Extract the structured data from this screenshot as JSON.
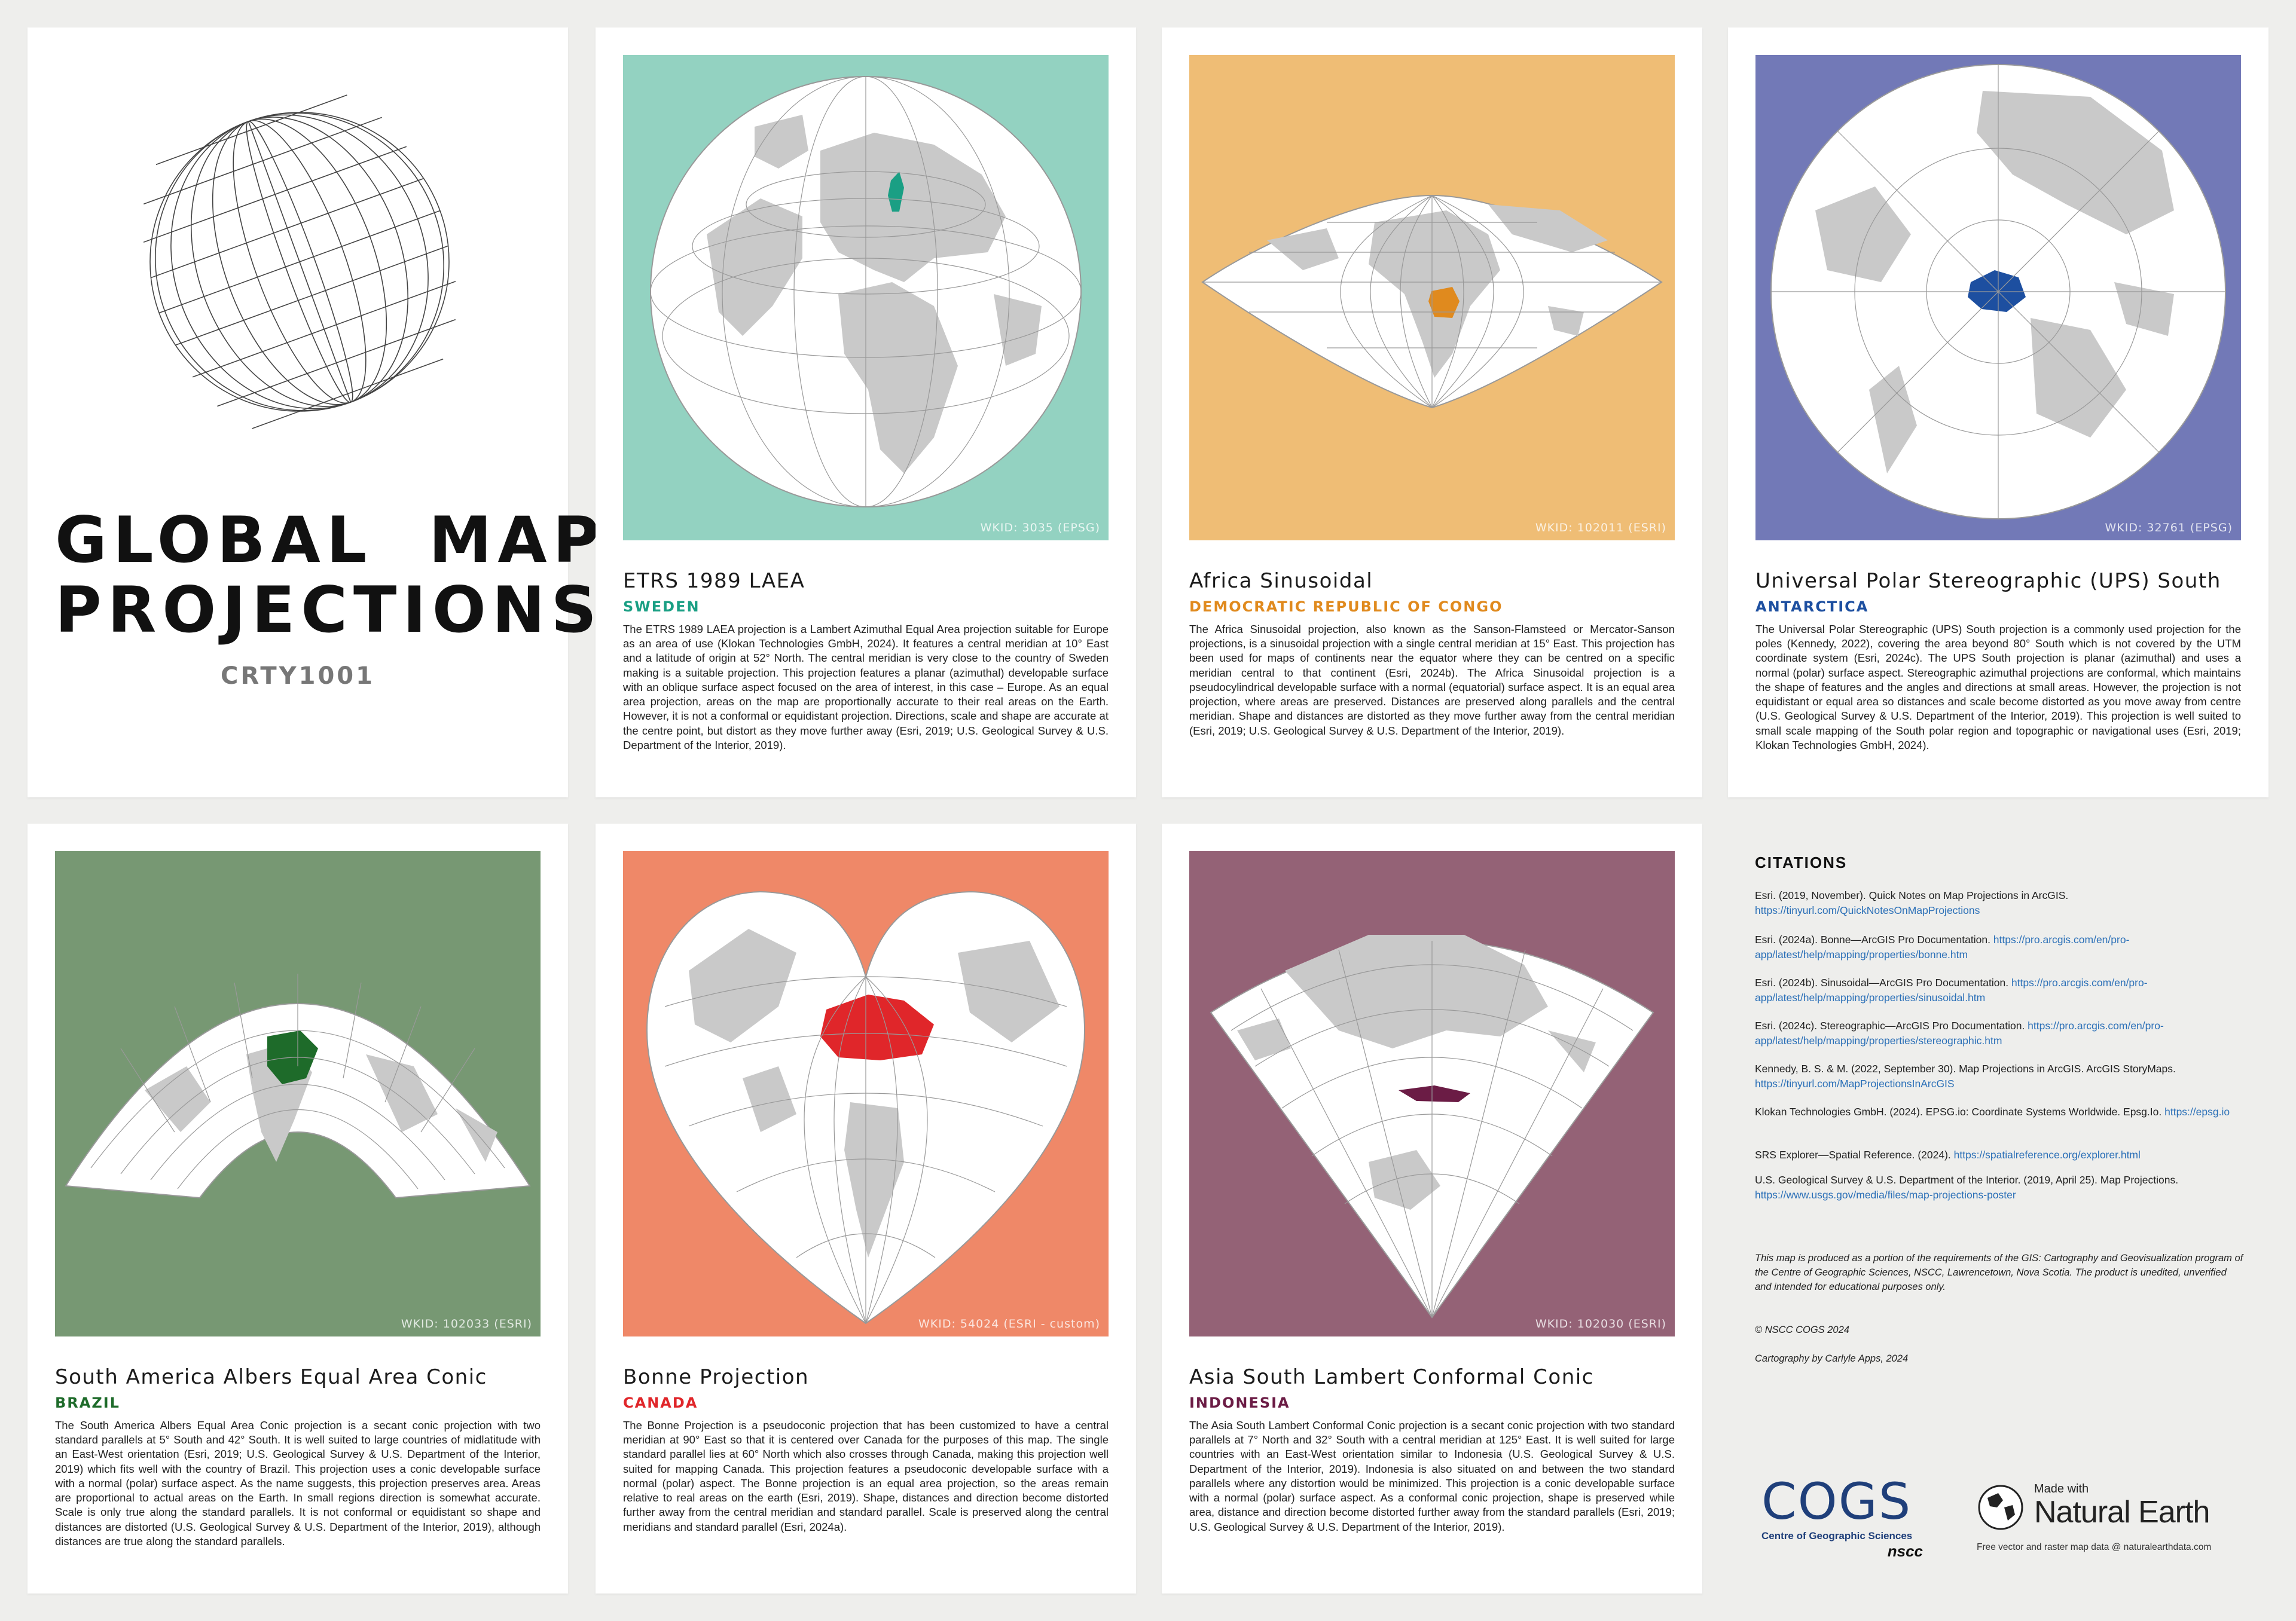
{
  "poster": {
    "title_line1": "GLOBAL  MAP",
    "title_line2": "PROJECTIONS",
    "course": "CRTY1001"
  },
  "colors": {
    "land": "#c9c9c9",
    "ocean": "#ffffff",
    "graticule": "#9a9a9a"
  },
  "projections": [
    {
      "title": "ETRS 1989 LAEA",
      "country": "SWEDEN",
      "accent": "#1a9f84",
      "background": "#93d2c1",
      "wkid": "WKID: 3035 (EPSG)",
      "description": "The ETRS 1989 LAEA projection is a Lambert Azimuthal Equal Area projection suitable for Europe as an area of use (Klokan Technologies GmbH, 2024). It features a central meridian at 10° East and a latitude of origin at 52° North. The central meridian is very close to the country of Sweden making is a suitable projection. This projection features a planar (azimuthal) developable surface with an oblique surface aspect focused on the area of interest, in this case – Europe. As an equal area projection, areas on the map are proportionally accurate to their real areas on the Earth. However, it is not a conformal or equidistant projection. Directions, scale and shape are accurate at the centre point, but distort as they move further away (Esri, 2019; U.S. Geological Survey & U.S. Department of the Interior, 2019)."
    },
    {
      "title": "Africa Sinusoidal",
      "country": "DEMOCRATIC REPUBLIC OF CONGO",
      "accent": "#e08a1e",
      "background": "#efbd75",
      "wkid": "WKID: 102011 (ESRI)",
      "description": "The Africa Sinusoidal projection, also known as the Sanson-Flamsteed or Mercator-Sanson projections, is a sinusoidal projection with a single central meridian at 15° East. This projection has been used for maps of continents near the equator where they can be centred on a specific meridian central to that continent (Esri, 2024b). The Africa Sinusoidal projection is a pseudocylindrical developable surface with a normal (equatorial) surface aspect. It is an equal area projection, where areas are preserved. Distances are preserved along parallels and the central meridian. Shape and distances are distorted as they move further away from the central meridian (Esri, 2019; U.S. Geological Survey & U.S. Department of the Interior, 2019)."
    },
    {
      "title": "Universal Polar Stereographic (UPS) South",
      "country": "ANTARCTICA",
      "accent": "#1d4fa0",
      "background": "#7279b7",
      "wkid": "WKID: 32761 (EPSG)",
      "description": "The Universal Polar Stereographic (UPS) South projection is a commonly used projection for the poles (Kennedy, 2022), covering the area beyond 80° South which is not covered by the UTM coordinate system (Esri, 2024c). The UPS South projection is planar (azimuthal) and uses a normal (polar) surface aspect. Stereographic azimuthal projections are conformal, which maintains the shape of features and the angles and directions at small areas. However, the projection is not equidistant or equal area so distances and scale become distorted as you move away from centre (U.S. Geological Survey & U.S. Department of the Interior, 2019). This projection is well suited to small scale mapping of the South polar region and topographic or navigational uses (Esri, 2019; Klokan Technologies GmbH, 2024)."
    },
    {
      "title": "South America Albers Equal Area Conic",
      "country": "BRAZIL",
      "accent": "#1e6b2a",
      "background": "#779873",
      "wkid": "WKID: 102033 (ESRI)",
      "description": "The South America Albers Equal Area Conic projection is a secant conic projection with two standard parallels at 5° South and 42° South. It is well suited to large countries of midlatitude with an East-West orientation (Esri, 2019; U.S. Geological Survey & U.S. Department of the Interior, 2019) which fits well with the country of Brazil. This projection uses a conic developable surface with a normal (polar) surface aspect. As the name suggests, this projection preserves area. Areas are proportional to actual areas on the Earth. In small regions direction is somewhat accurate. Scale is only true along the standard parallels. It is not conformal or equidistant so shape and distances are distorted (U.S. Geological Survey & U.S. Department of the Interior, 2019), although distances are true along the standard parallels."
    },
    {
      "title": "Bonne Projection",
      "country": "CANADA",
      "accent": "#e0262a",
      "background": "#ef8868",
      "wkid": "WKID: 54024 (ESRI - custom)",
      "description": "The Bonne Projection is a pseudoconic projection that has been customized to have a central meridian at 90° East so that it is centered over Canada for the purposes of this map. The single standard parallel lies at 60° North which also crosses through Canada, making this projection well suited for mapping Canada. This projection features a pseudoconic developable surface with a normal (polar) aspect. The Bonne projection is an equal area projection, so the areas remain relative to real areas on the earth (Esri, 2019). Shape, distances and direction become distorted further away from the central meridian and standard parallel. Scale is preserved along the central meridians and standard parallel (Esri, 2024a)."
    },
    {
      "title": "Asia South Lambert Conformal Conic",
      "country": "INDONESIA",
      "accent": "#6b1c45",
      "background": "#946276",
      "wkid": "WKID: 102030 (ESRI)",
      "description": "The Asia South Lambert Conformal Conic projection is a secant conic projection with two standard parallels at 7° North and 32° South with a central meridian at 125° East. It is well suited for large countries with an East-West orientation similar to Indonesia (U.S. Geological Survey & U.S. Department of the Interior, 2019). Indonesia is also situated on and between the two standard parallels where any distortion would be minimized. This projection is a conic developable surface with a normal (polar) surface aspect. As a conformal conic projection, shape is preserved while area, distance and direction become distorted further away from the standard parallels (Esri, 2019; U.S. Geological Survey & U.S. Department of the Interior, 2019)."
    }
  ],
  "citations": {
    "heading": "CITATIONS",
    "items": [
      {
        "text": "Esri. (2019, November). Quick Notes on Map Projections in ArcGIS. ",
        "link": "https://tinyurl.com/QuickNotesOnMapProjections"
      },
      {
        "text": "Esri. (2024a). Bonne—ArcGIS Pro Documentation. ",
        "link": "https://pro.arcgis.com/en/pro-app/latest/help/mapping/properties/bonne.htm"
      },
      {
        "text": "Esri. (2024b). Sinusoidal—ArcGIS Pro Documentation. ",
        "link": "https://pro.arcgis.com/en/pro-app/latest/help/mapping/properties/sinusoidal.htm"
      },
      {
        "text": "Esri. (2024c). Stereographic—ArcGIS Pro Documentation. ",
        "link": "https://pro.arcgis.com/en/pro-app/latest/help/mapping/properties/stereographic.htm"
      },
      {
        "text": "Kennedy, B. S. & M. (2022, September 30). Map Projections in ArcGIS. ArcGIS StoryMaps. ",
        "link": "https://tinyurl.com/MapProjectionsInArcGIS"
      },
      {
        "text": "Klokan Technologies GmbH. (2024). EPSG.io: Coordinate Systems Worldwide. Epsg.Io. ",
        "link": "https://epsg.io"
      },
      {
        "text": "SRS Explorer—Spatial Reference. (2024). ",
        "link": "https://spatialreference.org/explorer.html"
      },
      {
        "text": "U.S. Geological Survey & U.S. Department of the Interior. (2019, April 25). Map Projections. ",
        "link": "https://www.usgs.gov/media/files/map-projections-poster"
      }
    ]
  },
  "notes": {
    "disclaimer": "This map is produced as a portion of the requirements of the GIS: Cartography and Geovisualization program of the Centre of Geographic Sciences, NSCC, Lawrencetown, Nova Scotia. The product is unedited, unverified and intended for educational purposes only.",
    "copyright": "© NSCC COGS 2024",
    "credit": "Cartography by Carlyle Apps, 2024"
  },
  "logos": {
    "cogs_wordmark": "COGS",
    "cogs_subtitle": "Centre of Geographic Sciences",
    "nscc": "nscc",
    "ne_made_with": "Made with",
    "ne_name": "Natural Earth",
    "ne_tagline": "Free vector and raster map data @ naturalearthdata.com",
    "cogs_color": "#1f3f7a"
  }
}
